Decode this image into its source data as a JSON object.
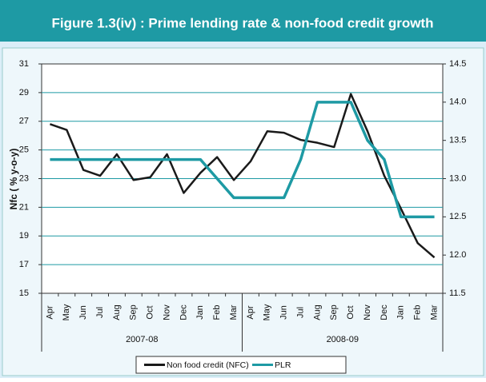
{
  "chart_data": {
    "type": "line",
    "title": "Figure 1.3(iv) : Prime lending rate & non-food credit growth",
    "y_label": "Nfc ( % y-o-y)",
    "categories": [
      "Apr",
      "May",
      "Jun",
      "Jul",
      "Aug",
      "Sep",
      "Oct",
      "Nov",
      "Dec",
      "Jan",
      "Feb",
      "Mar",
      "Apr",
      "May",
      "Jun",
      "Jul",
      "Aug",
      "Sep",
      "Oct",
      "Nov",
      "Dec",
      "Jan",
      "Feb",
      "Mar"
    ],
    "x_groups": [
      "2007-08",
      "2008-09"
    ],
    "series": [
      {
        "name": "Non food credit (NFC)",
        "color": "#1a1a1a",
        "axis": "y",
        "values": [
          26.8,
          26.4,
          23.6,
          23.2,
          24.7,
          22.9,
          23.1,
          24.7,
          22.0,
          23.4,
          24.5,
          22.9,
          24.2,
          26.3,
          26.2,
          25.7,
          25.5,
          25.2,
          28.9,
          26.3,
          23.2,
          20.9,
          18.5,
          17.5
        ]
      },
      {
        "name": "PLR",
        "color": "#1e9aa4",
        "axis": "y2",
        "values": [
          13.25,
          13.25,
          13.25,
          13.25,
          13.25,
          13.25,
          13.25,
          13.25,
          13.25,
          13.25,
          13.0,
          12.75,
          12.75,
          12.75,
          12.75,
          13.25,
          14.0,
          14.0,
          14.0,
          13.5,
          13.25,
          12.5,
          12.5,
          12.5
        ]
      }
    ],
    "ylim": [
      15,
      31
    ],
    "yticks": [
      15,
      17,
      19,
      21,
      23,
      25,
      27,
      29,
      31
    ],
    "y2lim": [
      11.5,
      14.5
    ],
    "y2ticks": [
      11.5,
      {
        "value": 12,
        "label": "12.0"
      },
      12.5,
      {
        "value": 13,
        "label": "13.0"
      },
      13.5,
      {
        "value": 14,
        "label": "14.0"
      },
      14.5
    ],
    "grid": true
  }
}
